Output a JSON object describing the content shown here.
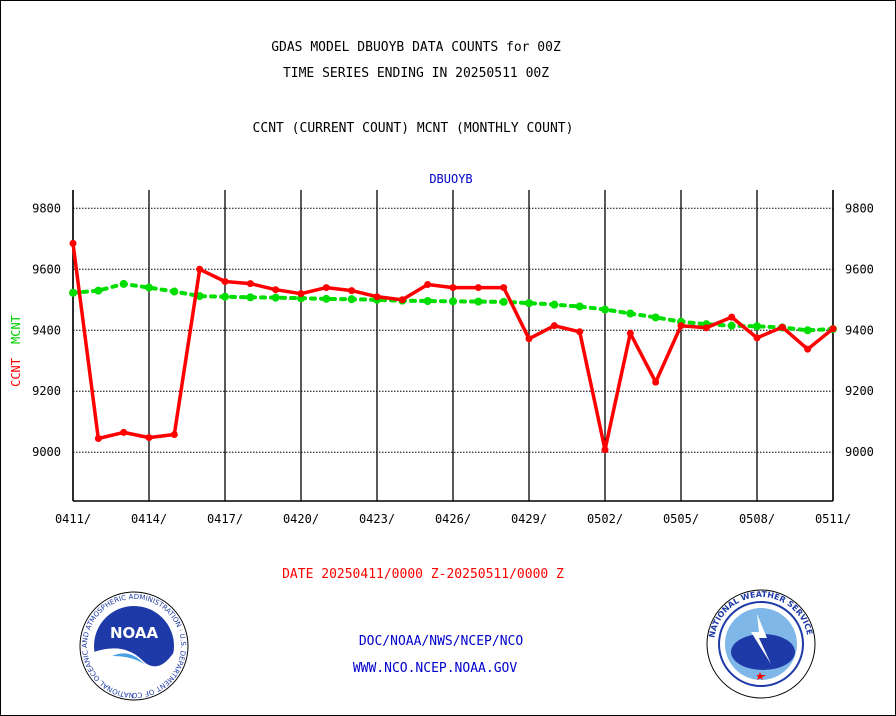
{
  "header": {
    "title_line1": "GDAS MODEL DBUOYB DATA COUNTS for 00Z",
    "title_line2": "TIME SERIES ENDING IN 20250511 00Z",
    "subtitle": "CCNT (CURRENT COUNT) MCNT (MONTHLY COUNT)"
  },
  "footer": {
    "date_range": "DATE 20250411/0000 Z-20250511/0000 Z",
    "org_line": "DOC/NOAA/NWS/NCEP/NCO",
    "url_line": "WWW.NCO.NCEP.NOAA.GOV"
  },
  "logos": {
    "noaa_text": "NOAA",
    "noaa_ring_text": "NATIONAL OCEANIC AND ATMOSPHERIC ADMINISTRATION · U.S. DEPARTMENT OF COMMERCE ·",
    "nws_ring_text": "NATIONAL WEATHER SERVICE"
  },
  "colors": {
    "ccnt": "#ff0000",
    "mcnt": "#00dd00",
    "plot_label": "#0000cc",
    "footer_blue": "#0000cc",
    "footer_red": "#ff0000"
  },
  "chart_data": {
    "type": "line",
    "plot_label": "DBUOYB",
    "ylabel_ccnt": "CCNT",
    "ylabel_mcnt": "MCNT",
    "ylim": [
      8840,
      9860
    ],
    "y_ticks": [
      9000,
      9200,
      9400,
      9600,
      9800
    ],
    "x_ticks": [
      "0411/",
      "0414/",
      "0417/",
      "0420/",
      "0423/",
      "0426/",
      "0429/",
      "0502/",
      "0505/",
      "0508/",
      "0511/"
    ],
    "grid": true,
    "x": [
      "0411",
      "0412",
      "0413",
      "0414",
      "0415",
      "0416",
      "0417",
      "0418",
      "0419",
      "0420",
      "0421",
      "0422",
      "0423",
      "0424",
      "0425",
      "0426",
      "0427",
      "0428",
      "0429",
      "0430",
      "0501",
      "0502",
      "0503",
      "0504",
      "0505",
      "0506",
      "0507",
      "0508",
      "0509",
      "0510",
      "0511"
    ],
    "series": [
      {
        "name": "CCNT",
        "values": [
          9685,
          9045,
          9065,
          9048,
          9058,
          9600,
          9560,
          9553,
          9533,
          9520,
          9540,
          9530,
          9510,
          9500,
          9550,
          9540,
          9540,
          9540,
          9372,
          9415,
          9395,
          9008,
          9390,
          9230,
          9415,
          9408,
          9443,
          9375,
          9410,
          9338,
          9405
        ]
      },
      {
        "name": "MCNT",
        "values": [
          9523,
          9530,
          9552,
          9540,
          9527,
          9512,
          9510,
          9508,
          9507,
          9505,
          9503,
          9502,
          9500,
          9497,
          9496,
          9495,
          9494,
          9493,
          9489,
          9484,
          9478,
          9468,
          9455,
          9442,
          9428,
          9420,
          9415,
          9413,
          9409,
          9400,
          9404
        ]
      }
    ]
  }
}
